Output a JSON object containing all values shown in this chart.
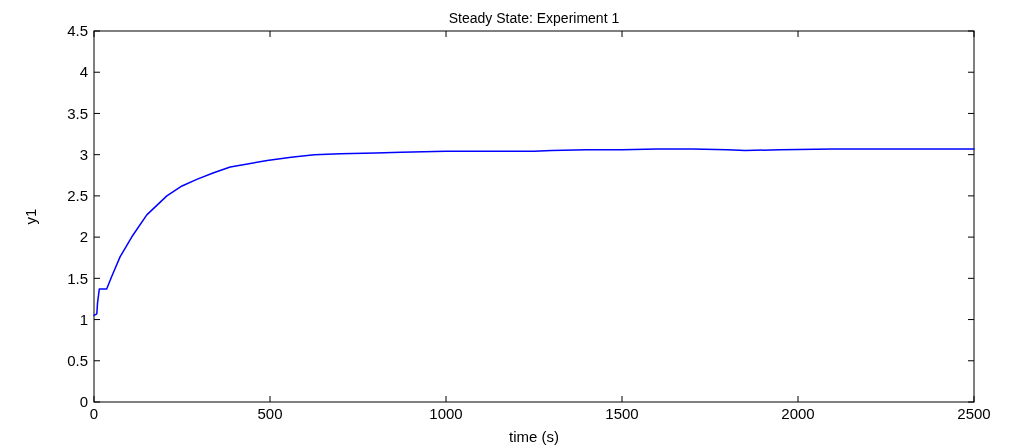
{
  "chart_data": {
    "type": "line",
    "title": "Steady State: Experiment 1",
    "xlabel": "time (s)",
    "ylabel": "y1",
    "xlim": [
      0,
      2500
    ],
    "xticks": [
      0,
      500,
      1000,
      1500,
      2000,
      2500
    ],
    "ylim": [
      0,
      4.5
    ],
    "yticks": [
      0,
      0.5,
      1,
      1.5,
      2,
      2.5,
      3,
      3.5,
      4,
      4.5
    ],
    "series": [
      {
        "color": "#0000ff",
        "x": [
          0,
          8,
          10,
          15,
          36,
          50,
          74,
          110,
          150,
          207,
          250,
          292,
          340,
          387,
          440,
          492,
          560,
          626,
          700,
          800,
          872,
          1000,
          1100,
          1250,
          1300,
          1400,
          1500,
          1600,
          1700,
          1800,
          1850,
          1950,
          2100,
          2300,
          2450,
          2500
        ],
        "values": [
          1.05,
          1.07,
          1.2,
          1.37,
          1.37,
          1.52,
          1.76,
          2.02,
          2.27,
          2.5,
          2.62,
          2.7,
          2.78,
          2.85,
          2.89,
          2.93,
          2.97,
          3.0,
          3.01,
          3.02,
          3.03,
          3.04,
          3.04,
          3.04,
          3.05,
          3.06,
          3.06,
          3.07,
          3.07,
          3.06,
          3.05,
          3.06,
          3.07,
          3.07,
          3.07,
          3.07
        ]
      }
    ],
    "grid": false
  }
}
